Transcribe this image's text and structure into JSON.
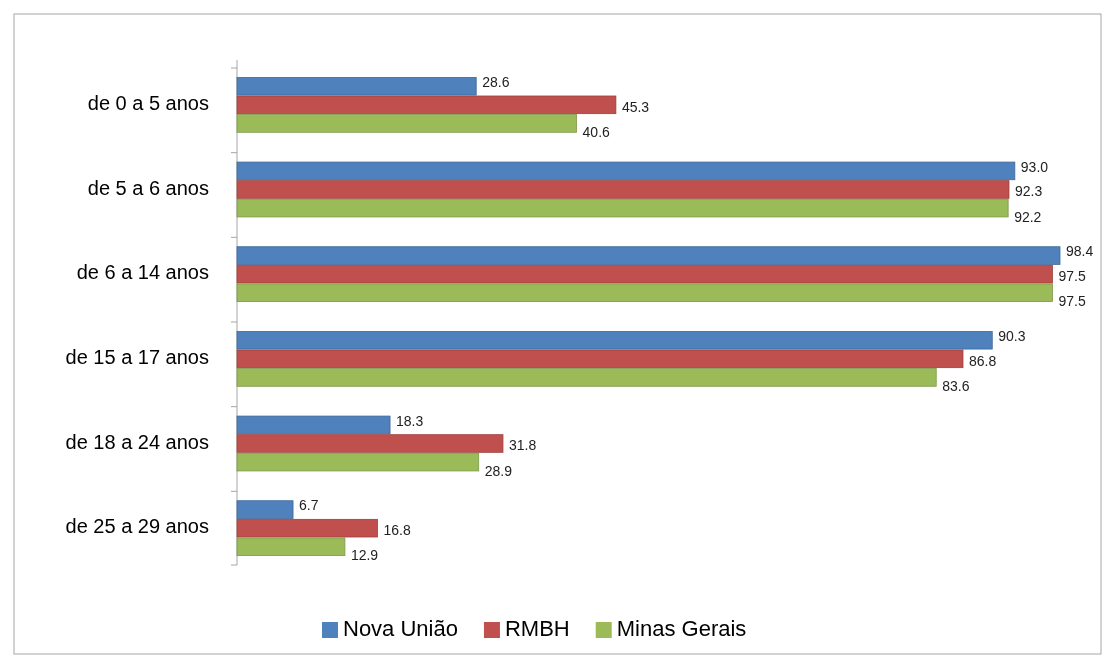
{
  "chart_data": {
    "type": "bar",
    "orientation": "horizontal",
    "categories": [
      "de 0 a 5 anos",
      "de 5 a 6 anos",
      "de 6 a 14 anos",
      "de 15 a 17 anos",
      "de 18 a 24 anos",
      "de 25 a 29 anos"
    ],
    "series": [
      {
        "name": "Nova União",
        "color": "#4f81bd",
        "values": [
          28.6,
          93.0,
          98.4,
          90.3,
          18.3,
          6.7
        ],
        "value_labels": [
          "28.6",
          "93.0",
          "98.4",
          "90.3",
          "18.3",
          "6.7"
        ]
      },
      {
        "name": "RMBH",
        "color": "#c0504d",
        "values": [
          45.3,
          92.3,
          97.5,
          86.8,
          31.8,
          16.8
        ],
        "value_labels": [
          "45.3",
          "92.3",
          "97.5",
          "86.8",
          "31.8",
          "16.8"
        ]
      },
      {
        "name": "Minas Gerais",
        "color": "#9bbb59",
        "values": [
          40.6,
          92.2,
          97.5,
          83.6,
          28.9,
          12.9
        ],
        "value_labels": [
          "40.6",
          "92.2",
          "97.5",
          "83.6",
          "28.9",
          "12.9"
        ]
      }
    ],
    "legend": "bottom",
    "grid": false
  }
}
